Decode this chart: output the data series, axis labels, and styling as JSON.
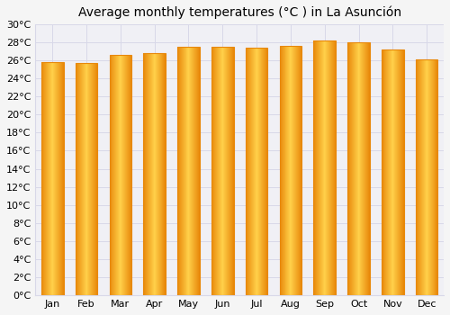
{
  "title": "Average monthly temperatures (°C ) in La Asunción",
  "months": [
    "Jan",
    "Feb",
    "Mar",
    "Apr",
    "May",
    "Jun",
    "Jul",
    "Aug",
    "Sep",
    "Oct",
    "Nov",
    "Dec"
  ],
  "values": [
    25.8,
    25.7,
    26.6,
    26.8,
    27.5,
    27.5,
    27.4,
    27.6,
    28.2,
    28.0,
    27.2,
    26.1
  ],
  "bar_color_center": "#FFD04A",
  "bar_color_edge": "#E8880A",
  "ylim": [
    0,
    30
  ],
  "ytick_step": 2,
  "background_color": "#f5f5f5",
  "plot_bg_color": "#f0f0f5",
  "grid_color": "#d8d8e8",
  "title_fontsize": 10,
  "tick_fontsize": 8,
  "bar_width": 0.65
}
